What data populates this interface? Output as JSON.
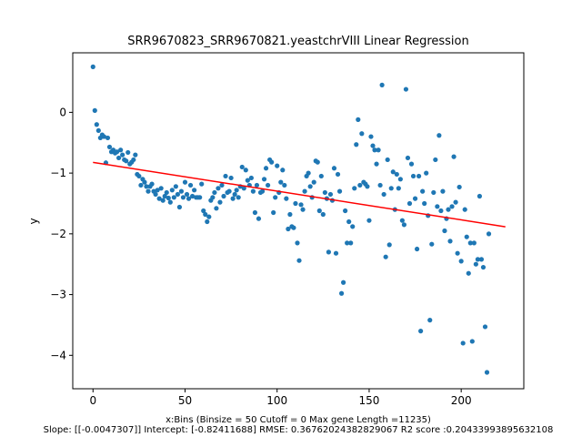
{
  "chart_data": {
    "type": "scatter",
    "title": "SRR9670823_SRR9670821.yeastchrVIII Linear Regression",
    "xlabel": "",
    "ylabel": "y",
    "caption_line1": "x:Bins  (Binsize = 50 Cutoff = 0 Max gene Length =11235)",
    "caption_line2": "Slope: [[-0.0047307]] Intercept: [-0.82411688] RMSE: 0.36762024382829067 R2 score :0.20433993895632108",
    "xlim": [
      -11,
      234
    ],
    "ylim": [
      -4.55,
      0.98
    ],
    "x_ticks": [
      0,
      50,
      100,
      150,
      200
    ],
    "y_ticks": [
      0,
      -1,
      -2,
      -3,
      -4
    ],
    "x_tick_labels": [
      "0",
      "50",
      "100",
      "150",
      "200"
    ],
    "y_tick_labels": [
      "0",
      "−1",
      "−2",
      "−3",
      "−4"
    ],
    "grid": false,
    "colors": {
      "points": "#1f77b4",
      "regression": "#ff0000"
    },
    "regression": {
      "slope": -0.0047307,
      "intercept": -0.82411688,
      "x_range": [
        0,
        224
      ]
    },
    "points": [
      [
        0,
        0.75
      ],
      [
        1,
        0.03
      ],
      [
        2,
        -0.2
      ],
      [
        3,
        -0.3
      ],
      [
        4,
        -0.42
      ],
      [
        5,
        -0.37
      ],
      [
        6,
        -0.4
      ],
      [
        7,
        -0.83
      ],
      [
        8,
        -0.42
      ],
      [
        9,
        -0.57
      ],
      [
        10,
        -0.65
      ],
      [
        11,
        -0.62
      ],
      [
        12,
        -0.67
      ],
      [
        13,
        -0.65
      ],
      [
        14,
        -0.75
      ],
      [
        15,
        -0.62
      ],
      [
        16,
        -0.7
      ],
      [
        17,
        -0.78
      ],
      [
        18,
        -0.8
      ],
      [
        19,
        -0.66
      ],
      [
        20,
        -0.85
      ],
      [
        21,
        -0.82
      ],
      [
        22,
        -0.78
      ],
      [
        23,
        -0.7
      ],
      [
        24,
        -1.02
      ],
      [
        25,
        -1.05
      ],
      [
        26,
        -1.2
      ],
      [
        27,
        -1.1
      ],
      [
        28,
        -1.15
      ],
      [
        29,
        -1.22
      ],
      [
        30,
        -1.3
      ],
      [
        31,
        -1.22
      ],
      [
        32,
        -1.18
      ],
      [
        33,
        -1.3
      ],
      [
        34,
        -1.35
      ],
      [
        35,
        -1.28
      ],
      [
        36,
        -1.42
      ],
      [
        37,
        -1.25
      ],
      [
        38,
        -1.45
      ],
      [
        39,
        -1.38
      ],
      [
        40,
        -1.32
      ],
      [
        41,
        -1.41
      ],
      [
        42,
        -1.48
      ],
      [
        43,
        -1.28
      ],
      [
        44,
        -1.4
      ],
      [
        45,
        -1.22
      ],
      [
        46,
        -1.35
      ],
      [
        47,
        -1.56
      ],
      [
        48,
        -1.3
      ],
      [
        49,
        -1.4
      ],
      [
        50,
        -1.15
      ],
      [
        51,
        -1.35
      ],
      [
        52,
        -1.42
      ],
      [
        53,
        -1.2
      ],
      [
        54,
        -1.38
      ],
      [
        55,
        -1.28
      ],
      [
        56,
        -1.4
      ],
      [
        57,
        -1.4
      ],
      [
        58,
        -1.4
      ],
      [
        59,
        -1.18
      ],
      [
        60,
        -1.62
      ],
      [
        61,
        -1.68
      ],
      [
        62,
        -1.8
      ],
      [
        63,
        -1.72
      ],
      [
        64,
        -1.45
      ],
      [
        65,
        -1.4
      ],
      [
        66,
        -1.32
      ],
      [
        67,
        -1.58
      ],
      [
        68,
        -1.25
      ],
      [
        69,
        -1.48
      ],
      [
        70,
        -1.2
      ],
      [
        71,
        -1.38
      ],
      [
        72,
        -1.05
      ],
      [
        73,
        -1.32
      ],
      [
        74,
        -1.3
      ],
      [
        75,
        -1.08
      ],
      [
        76,
        -1.42
      ],
      [
        77,
        -1.35
      ],
      [
        78,
        -1.28
      ],
      [
        79,
        -1.4
      ],
      [
        80,
        -1.22
      ],
      [
        81,
        -0.9
      ],
      [
        82,
        -1.25
      ],
      [
        83,
        -0.95
      ],
      [
        84,
        -1.12
      ],
      [
        85,
        -1.2
      ],
      [
        86,
        -1.08
      ],
      [
        87,
        -1.3
      ],
      [
        88,
        -1.65
      ],
      [
        89,
        -1.2
      ],
      [
        90,
        -1.75
      ],
      [
        91,
        -1.32
      ],
      [
        92,
        -1.3
      ],
      [
        93,
        -1.1
      ],
      [
        94,
        -0.92
      ],
      [
        95,
        -1.2
      ],
      [
        96,
        -0.78
      ],
      [
        97,
        -0.82
      ],
      [
        98,
        -1.65
      ],
      [
        99,
        -1.4
      ],
      [
        100,
        -0.88
      ],
      [
        101,
        -1.32
      ],
      [
        102,
        -1.15
      ],
      [
        103,
        -0.95
      ],
      [
        104,
        -1.2
      ],
      [
        105,
        -1.42
      ],
      [
        106,
        -1.92
      ],
      [
        107,
        -1.68
      ],
      [
        108,
        -1.88
      ],
      [
        109,
        -1.9
      ],
      [
        110,
        -1.5
      ],
      [
        111,
        -2.15
      ],
      [
        112,
        -2.44
      ],
      [
        113,
        -1.52
      ],
      [
        114,
        -1.6
      ],
      [
        115,
        -1.3
      ],
      [
        116,
        -1.05
      ],
      [
        117,
        -1.0
      ],
      [
        118,
        -1.22
      ],
      [
        119,
        -1.4
      ],
      [
        120,
        -1.15
      ],
      [
        121,
        -0.8
      ],
      [
        122,
        -0.82
      ],
      [
        123,
        -1.62
      ],
      [
        124,
        -1.05
      ],
      [
        125,
        -1.68
      ],
      [
        126,
        -1.32
      ],
      [
        127,
        -1.42
      ],
      [
        128,
        -2.3
      ],
      [
        129,
        -1.35
      ],
      [
        130,
        -1.45
      ],
      [
        131,
        -0.92
      ],
      [
        132,
        -2.32
      ],
      [
        133,
        -1.02
      ],
      [
        134,
        -1.3
      ],
      [
        135,
        -2.98
      ],
      [
        136,
        -2.8
      ],
      [
        137,
        -1.62
      ],
      [
        138,
        -2.15
      ],
      [
        139,
        -1.8
      ],
      [
        140,
        -2.15
      ],
      [
        141,
        -1.88
      ],
      [
        142,
        -1.25
      ],
      [
        143,
        -0.53
      ],
      [
        144,
        -0.12
      ],
      [
        145,
        -1.2
      ],
      [
        146,
        -0.35
      ],
      [
        147,
        -1.15
      ],
      [
        148,
        -1.18
      ],
      [
        149,
        -1.22
      ],
      [
        150,
        -1.78
      ],
      [
        151,
        -0.4
      ],
      [
        152,
        -0.55
      ],
      [
        153,
        -0.62
      ],
      [
        154,
        -0.85
      ],
      [
        155,
        -0.62
      ],
      [
        156,
        -1.2
      ],
      [
        157,
        0.45
      ],
      [
        158,
        -1.35
      ],
      [
        159,
        -2.38
      ],
      [
        160,
        -0.78
      ],
      [
        161,
        -2.18
      ],
      [
        162,
        -1.25
      ],
      [
        163,
        -0.98
      ],
      [
        164,
        -1.6
      ],
      [
        165,
        -1.02
      ],
      [
        166,
        -1.25
      ],
      [
        167,
        -1.1
      ],
      [
        168,
        -1.78
      ],
      [
        169,
        -1.85
      ],
      [
        170,
        0.38
      ],
      [
        171,
        -0.75
      ],
      [
        172,
        -1.5
      ],
      [
        173,
        -0.85
      ],
      [
        174,
        -1.05
      ],
      [
        175,
        -1.42
      ],
      [
        176,
        -2.25
      ],
      [
        177,
        -1.05
      ],
      [
        178,
        -3.6
      ],
      [
        179,
        -1.3
      ],
      [
        180,
        -1.5
      ],
      [
        181,
        -1.0
      ],
      [
        182,
        -1.7
      ],
      [
        183,
        -3.42
      ],
      [
        184,
        -2.17
      ],
      [
        185,
        -1.32
      ],
      [
        186,
        -0.78
      ],
      [
        187,
        -1.55
      ],
      [
        188,
        -0.38
      ],
      [
        189,
        -1.62
      ],
      [
        190,
        -1.3
      ],
      [
        191,
        -1.95
      ],
      [
        192,
        -1.75
      ],
      [
        193,
        -1.6
      ],
      [
        194,
        -2.12
      ],
      [
        195,
        -1.55
      ],
      [
        196,
        -0.73
      ],
      [
        197,
        -1.48
      ],
      [
        198,
        -2.32
      ],
      [
        199,
        -1.23
      ],
      [
        200,
        -2.45
      ],
      [
        201,
        -3.8
      ],
      [
        202,
        -1.6
      ],
      [
        203,
        -2.05
      ],
      [
        204,
        -2.65
      ],
      [
        205,
        -2.15
      ],
      [
        206,
        -3.77
      ],
      [
        207,
        -2.15
      ],
      [
        208,
        -2.5
      ],
      [
        209,
        -2.42
      ],
      [
        210,
        -1.38
      ],
      [
        211,
        -2.42
      ],
      [
        212,
        -2.55
      ],
      [
        213,
        -3.53
      ],
      [
        214,
        -4.28
      ],
      [
        215,
        -2.0
      ]
    ]
  }
}
